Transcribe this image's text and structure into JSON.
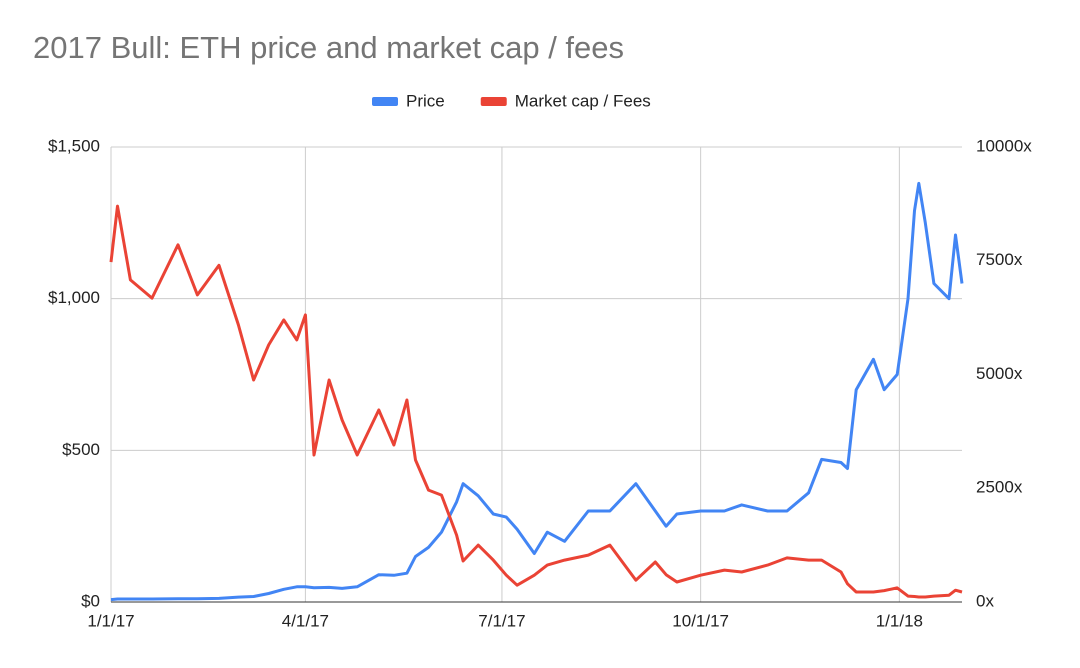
{
  "chart_data": {
    "type": "line",
    "title": "2017 Bull: ETH price and market cap / fees",
    "x": [
      "1/1/17",
      "1/4/17",
      "1/10/17",
      "1/20/17",
      "2/1/17",
      "2/10/17",
      "2/20/17",
      "3/1/17",
      "3/8/17",
      "3/15/17",
      "3/22/17",
      "3/28/17",
      "4/1/17",
      "4/5/17",
      "4/12/17",
      "4/18/17",
      "4/25/17",
      "5/5/17",
      "5/12/17",
      "5/18/17",
      "5/22/17",
      "5/28/17",
      "6/3/17",
      "6/10/17",
      "6/13/17",
      "6/20/17",
      "6/27/17",
      "7/3/17",
      "7/8/17",
      "7/16/17",
      "7/22/17",
      "7/30/17",
      "8/10/17",
      "8/20/17",
      "9/1/17",
      "9/10/17",
      "9/15/17",
      "9/20/17",
      "10/1/17",
      "10/12/17",
      "10/20/17",
      "11/1/17",
      "11/10/17",
      "11/20/17",
      "11/26/17",
      "12/5/17",
      "12/8/17",
      "12/12/17",
      "12/20/17",
      "12/25/17",
      "12/31/17",
      "1/5/18",
      "1/8/18",
      "1/10/18",
      "1/13/18",
      "1/17/18",
      "1/24/18",
      "1/27/18",
      "1/30/18"
    ],
    "series": [
      {
        "name": "Price",
        "color": "#4285f4",
        "axis": "y",
        "values": [
          8,
          10,
          10,
          10,
          11,
          11,
          12,
          16,
          18,
          28,
          42,
          50,
          50,
          47,
          48,
          45,
          50,
          90,
          88,
          95,
          150,
          180,
          230,
          330,
          390,
          350,
          290,
          280,
          240,
          160,
          230,
          200,
          300,
          300,
          390,
          300,
          250,
          290,
          300,
          300,
          320,
          300,
          300,
          360,
          470,
          460,
          440,
          700,
          800,
          700,
          750,
          1000,
          1290,
          1380,
          1250,
          1050,
          1000,
          1210,
          1050
        ]
      },
      {
        "name": "Market cap / Fees",
        "color": "#ea4335",
        "axis": "y2",
        "values": [
          7470,
          8700,
          7080,
          6680,
          7850,
          6750,
          7400,
          6090,
          4880,
          5650,
          6200,
          5760,
          6310,
          3230,
          4880,
          4000,
          3230,
          4220,
          3450,
          4440,
          3120,
          2460,
          2350,
          1470,
          900,
          1250,
          920,
          590,
          370,
          590,
          810,
          920,
          1030,
          1250,
          480,
          880,
          600,
          440,
          590,
          700,
          660,
          810,
          970,
          920,
          920,
          660,
          400,
          220,
          220,
          250,
          310,
          130,
          120,
          110,
          110,
          130,
          150,
          260,
          220
        ]
      }
    ],
    "xlim": [
      "1/1/17",
      "1/30/18"
    ],
    "xticks": [
      "1/1/17",
      "4/1/17",
      "7/1/17",
      "10/1/17",
      "1/1/18"
    ],
    "ylim": [
      0,
      1500
    ],
    "yticks": [
      {
        "value": 0,
        "label": "$0"
      },
      {
        "value": 500,
        "label": "$500"
      },
      {
        "value": 1000,
        "label": "$1,000"
      },
      {
        "value": 1500,
        "label": "$1,500"
      }
    ],
    "y2lim": [
      0,
      10000
    ],
    "y2ticks": [
      {
        "value": 0,
        "label": "0x"
      },
      {
        "value": 2500,
        "label": "2500x"
      },
      {
        "value": 5000,
        "label": "5000x"
      },
      {
        "value": 7500,
        "label": "7500x"
      },
      {
        "value": 10000,
        "label": "10000x"
      }
    ],
    "grid": true,
    "legend": "top"
  }
}
